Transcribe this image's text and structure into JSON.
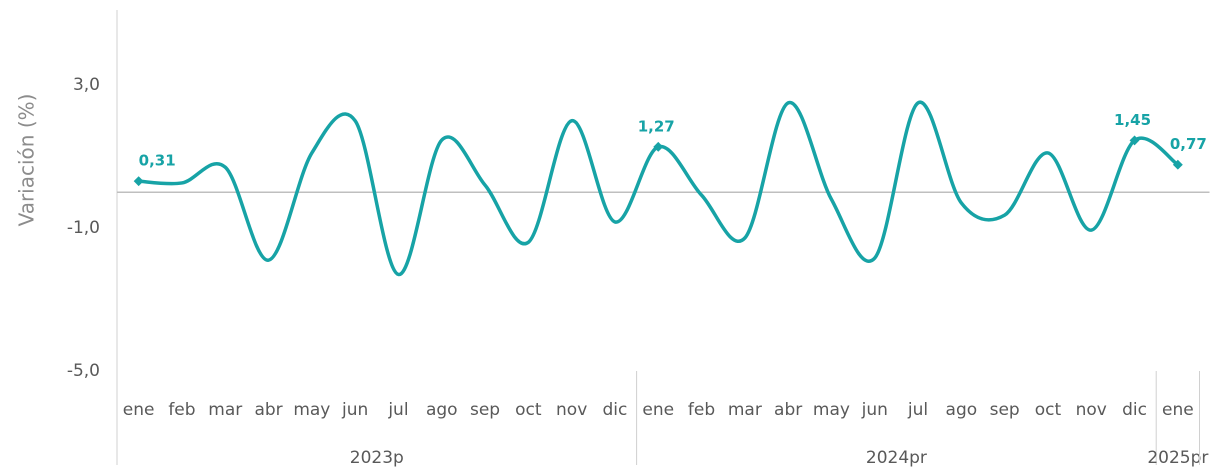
{
  "chart_data": {
    "type": "line",
    "y_label": "Variación (%)",
    "groups": [
      {
        "label": "2023p",
        "months": [
          "ene",
          "feb",
          "mar",
          "abr",
          "may",
          "jun",
          "jul",
          "ago",
          "sep",
          "oct",
          "nov",
          "dic"
        ]
      },
      {
        "label": "2024pr",
        "months": [
          "ene",
          "feb",
          "mar",
          "abr",
          "may",
          "jun",
          "jul",
          "ago",
          "sep",
          "oct",
          "nov",
          "dic"
        ]
      },
      {
        "label": "2025pr",
        "months": [
          "ene"
        ]
      }
    ],
    "series": [
      {
        "color": "#17a3a6",
        "values": [
          0.31,
          0.26,
          0.7,
          -1.9,
          1.1,
          2.0,
          -2.3,
          1.46,
          0.2,
          -1.4,
          2.0,
          -0.83,
          1.27,
          -0.08,
          -1.28,
          2.5,
          -0.2,
          -1.84,
          2.5,
          -0.3,
          -0.64,
          1.1,
          -1.06,
          1.45,
          0.77
        ],
        "value_labels": [
          "0,31",
          null,
          null,
          null,
          null,
          null,
          null,
          null,
          null,
          null,
          null,
          null,
          "1,27",
          null,
          null,
          null,
          null,
          null,
          null,
          null,
          null,
          null,
          null,
          "1,45",
          "0,77"
        ]
      }
    ],
    "ylim": [
      -5,
      5
    ],
    "yticks": [
      {
        "value": -5,
        "label": "-5,0"
      },
      {
        "value": -1,
        "label": "-1,0"
      },
      {
        "value": 3,
        "label": "3,0"
      }
    ]
  }
}
